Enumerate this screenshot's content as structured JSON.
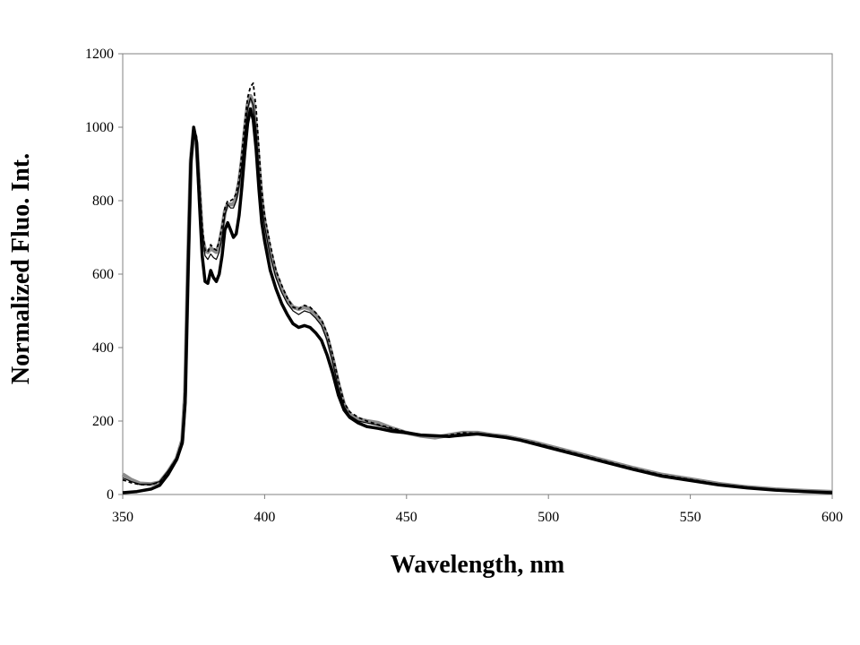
{
  "chart_data": {
    "type": "line",
    "title": "",
    "xlabel": "Wavelength, nm",
    "ylabel": "Normalized Fluo. Int.",
    "xlim": [
      350,
      600
    ],
    "ylim": [
      0,
      1200
    ],
    "x_ticks": [
      350,
      400,
      450,
      500,
      550,
      600
    ],
    "y_ticks": [
      0,
      200,
      400,
      600,
      800,
      1000,
      1200
    ],
    "grid": false,
    "legend": "none",
    "series": [
      {
        "style": "thick-black",
        "color": "#000000",
        "points": [
          [
            350,
            5
          ],
          [
            355,
            8
          ],
          [
            360,
            15
          ],
          [
            363,
            25
          ],
          [
            366,
            55
          ],
          [
            369,
            95
          ],
          [
            371,
            140
          ],
          [
            372,
            250
          ],
          [
            373,
            600
          ],
          [
            374,
            900
          ],
          [
            375,
            1000
          ],
          [
            376,
            960
          ],
          [
            377,
            800
          ],
          [
            378,
            650
          ],
          [
            379,
            580
          ],
          [
            380,
            575
          ],
          [
            381,
            610
          ],
          [
            382,
            590
          ],
          [
            383,
            580
          ],
          [
            384,
            600
          ],
          [
            385,
            650
          ],
          [
            386,
            720
          ],
          [
            387,
            740
          ],
          [
            388,
            720
          ],
          [
            389,
            700
          ],
          [
            390,
            710
          ],
          [
            391,
            760
          ],
          [
            392,
            840
          ],
          [
            393,
            930
          ],
          [
            394,
            1010
          ],
          [
            395,
            1050
          ],
          [
            396,
            1020
          ],
          [
            397,
            940
          ],
          [
            398,
            830
          ],
          [
            399,
            740
          ],
          [
            400,
            690
          ],
          [
            402,
            610
          ],
          [
            404,
            560
          ],
          [
            406,
            520
          ],
          [
            408,
            490
          ],
          [
            410,
            465
          ],
          [
            412,
            455
          ],
          [
            414,
            460
          ],
          [
            416,
            455
          ],
          [
            418,
            440
          ],
          [
            420,
            420
          ],
          [
            422,
            380
          ],
          [
            424,
            330
          ],
          [
            426,
            270
          ],
          [
            428,
            230
          ],
          [
            430,
            210
          ],
          [
            433,
            195
          ],
          [
            436,
            185
          ],
          [
            440,
            180
          ],
          [
            445,
            172
          ],
          [
            450,
            168
          ],
          [
            455,
            162
          ],
          [
            460,
            160
          ],
          [
            465,
            158
          ],
          [
            470,
            162
          ],
          [
            475,
            165
          ],
          [
            480,
            160
          ],
          [
            485,
            155
          ],
          [
            490,
            148
          ],
          [
            495,
            138
          ],
          [
            500,
            128
          ],
          [
            510,
            108
          ],
          [
            520,
            88
          ],
          [
            530,
            68
          ],
          [
            540,
            50
          ],
          [
            550,
            38
          ],
          [
            560,
            26
          ],
          [
            570,
            18
          ],
          [
            580,
            12
          ],
          [
            590,
            8
          ],
          [
            600,
            5
          ]
        ]
      },
      {
        "style": "thin-black",
        "color": "#000000",
        "points": [
          [
            350,
            45
          ],
          [
            353,
            35
          ],
          [
            356,
            28
          ],
          [
            360,
            28
          ],
          [
            363,
            35
          ],
          [
            366,
            65
          ],
          [
            369,
            100
          ],
          [
            371,
            150
          ],
          [
            372,
            300
          ],
          [
            373,
            650
          ],
          [
            374,
            930
          ],
          [
            375,
            995
          ],
          [
            376,
            970
          ],
          [
            377,
            840
          ],
          [
            378,
            720
          ],
          [
            379,
            650
          ],
          [
            380,
            640
          ],
          [
            381,
            655
          ],
          [
            382,
            645
          ],
          [
            383,
            640
          ],
          [
            384,
            660
          ],
          [
            385,
            700
          ],
          [
            386,
            760
          ],
          [
            387,
            790
          ],
          [
            388,
            780
          ],
          [
            389,
            780
          ],
          [
            390,
            800
          ],
          [
            391,
            840
          ],
          [
            392,
            900
          ],
          [
            393,
            980
          ],
          [
            394,
            1050
          ],
          [
            395,
            1080
          ],
          [
            396,
            1060
          ],
          [
            397,
            990
          ],
          [
            398,
            880
          ],
          [
            399,
            790
          ],
          [
            400,
            730
          ],
          [
            402,
            650
          ],
          [
            404,
            590
          ],
          [
            406,
            550
          ],
          [
            408,
            520
          ],
          [
            410,
            500
          ],
          [
            412,
            490
          ],
          [
            414,
            500
          ],
          [
            416,
            495
          ],
          [
            418,
            480
          ],
          [
            420,
            460
          ],
          [
            422,
            420
          ],
          [
            424,
            360
          ],
          [
            426,
            290
          ],
          [
            428,
            240
          ],
          [
            430,
            215
          ],
          [
            433,
            200
          ],
          [
            436,
            195
          ],
          [
            440,
            188
          ],
          [
            445,
            178
          ],
          [
            450,
            170
          ],
          [
            455,
            162
          ],
          [
            460,
            158
          ],
          [
            465,
            160
          ],
          [
            470,
            165
          ],
          [
            475,
            165
          ],
          [
            480,
            160
          ],
          [
            485,
            155
          ],
          [
            490,
            150
          ],
          [
            495,
            140
          ],
          [
            500,
            130
          ],
          [
            510,
            110
          ],
          [
            520,
            90
          ],
          [
            530,
            70
          ],
          [
            540,
            52
          ],
          [
            550,
            40
          ],
          [
            560,
            27
          ],
          [
            570,
            19
          ],
          [
            580,
            13
          ],
          [
            590,
            9
          ],
          [
            600,
            6
          ]
        ]
      },
      {
        "style": "thick-grey",
        "color": "#8c8c8c",
        "points": [
          [
            350,
            55
          ],
          [
            353,
            40
          ],
          [
            356,
            30
          ],
          [
            360,
            28
          ],
          [
            363,
            33
          ],
          [
            366,
            62
          ],
          [
            369,
            98
          ],
          [
            371,
            148
          ],
          [
            372,
            280
          ],
          [
            373,
            630
          ],
          [
            374,
            910
          ],
          [
            375,
            990
          ],
          [
            376,
            955
          ],
          [
            377,
            830
          ],
          [
            378,
            700
          ],
          [
            379,
            665
          ],
          [
            380,
            660
          ],
          [
            381,
            670
          ],
          [
            382,
            665
          ],
          [
            383,
            660
          ],
          [
            384,
            680
          ],
          [
            385,
            720
          ],
          [
            386,
            770
          ],
          [
            387,
            790
          ],
          [
            388,
            790
          ],
          [
            389,
            790
          ],
          [
            390,
            810
          ],
          [
            391,
            850
          ],
          [
            392,
            910
          ],
          [
            393,
            990
          ],
          [
            394,
            1060
          ],
          [
            395,
            1085
          ],
          [
            396,
            1065
          ],
          [
            397,
            995
          ],
          [
            398,
            890
          ],
          [
            399,
            800
          ],
          [
            400,
            740
          ],
          [
            402,
            660
          ],
          [
            404,
            600
          ],
          [
            406,
            560
          ],
          [
            408,
            530
          ],
          [
            410,
            510
          ],
          [
            412,
            505
          ],
          [
            414,
            510
          ],
          [
            416,
            505
          ],
          [
            418,
            490
          ],
          [
            420,
            470
          ],
          [
            422,
            430
          ],
          [
            424,
            370
          ],
          [
            426,
            300
          ],
          [
            428,
            245
          ],
          [
            430,
            218
          ],
          [
            433,
            205
          ],
          [
            436,
            200
          ],
          [
            440,
            195
          ],
          [
            445,
            180
          ],
          [
            450,
            168
          ],
          [
            455,
            160
          ],
          [
            460,
            155
          ],
          [
            465,
            162
          ],
          [
            470,
            168
          ],
          [
            475,
            168
          ],
          [
            480,
            162
          ],
          [
            485,
            158
          ],
          [
            490,
            150
          ],
          [
            495,
            142
          ],
          [
            500,
            132
          ],
          [
            510,
            112
          ],
          [
            520,
            92
          ],
          [
            530,
            72
          ],
          [
            540,
            54
          ],
          [
            550,
            42
          ],
          [
            560,
            29
          ],
          [
            570,
            20
          ],
          [
            580,
            14
          ],
          [
            590,
            10
          ],
          [
            600,
            7
          ]
        ]
      },
      {
        "style": "dashed-black",
        "color": "#000000",
        "points": [
          [
            350,
            40
          ],
          [
            353,
            32
          ],
          [
            356,
            27
          ],
          [
            360,
            27
          ],
          [
            363,
            34
          ],
          [
            366,
            63
          ],
          [
            369,
            100
          ],
          [
            371,
            150
          ],
          [
            372,
            290
          ],
          [
            373,
            640
          ],
          [
            374,
            925
          ],
          [
            375,
            1000
          ],
          [
            376,
            975
          ],
          [
            377,
            850
          ],
          [
            378,
            730
          ],
          [
            379,
            665
          ],
          [
            380,
            660
          ],
          [
            381,
            680
          ],
          [
            382,
            670
          ],
          [
            383,
            665
          ],
          [
            384,
            690
          ],
          [
            385,
            730
          ],
          [
            386,
            780
          ],
          [
            387,
            800
          ],
          [
            388,
            800
          ],
          [
            389,
            805
          ],
          [
            390,
            820
          ],
          [
            391,
            860
          ],
          [
            392,
            930
          ],
          [
            393,
            1010
          ],
          [
            394,
            1080
          ],
          [
            395,
            1110
          ],
          [
            396,
            1120
          ],
          [
            397,
            1050
          ],
          [
            398,
            940
          ],
          [
            399,
            830
          ],
          [
            400,
            760
          ],
          [
            402,
            680
          ],
          [
            404,
            610
          ],
          [
            406,
            570
          ],
          [
            408,
            535
          ],
          [
            410,
            510
          ],
          [
            412,
            505
          ],
          [
            414,
            515
          ],
          [
            416,
            510
          ],
          [
            418,
            495
          ],
          [
            420,
            475
          ],
          [
            422,
            440
          ],
          [
            424,
            380
          ],
          [
            426,
            310
          ],
          [
            428,
            250
          ],
          [
            430,
            225
          ],
          [
            433,
            210
          ],
          [
            436,
            200
          ],
          [
            440,
            190
          ],
          [
            445,
            180
          ],
          [
            450,
            170
          ],
          [
            455,
            163
          ],
          [
            460,
            158
          ],
          [
            465,
            162
          ],
          [
            470,
            168
          ],
          [
            475,
            166
          ],
          [
            480,
            162
          ],
          [
            485,
            157
          ],
          [
            490,
            150
          ],
          [
            495,
            141
          ],
          [
            500,
            131
          ],
          [
            510,
            111
          ],
          [
            520,
            91
          ],
          [
            530,
            71
          ],
          [
            540,
            53
          ],
          [
            550,
            41
          ],
          [
            560,
            28
          ],
          [
            570,
            20
          ],
          [
            580,
            13
          ],
          [
            590,
            9
          ],
          [
            600,
            6
          ]
        ]
      }
    ]
  }
}
